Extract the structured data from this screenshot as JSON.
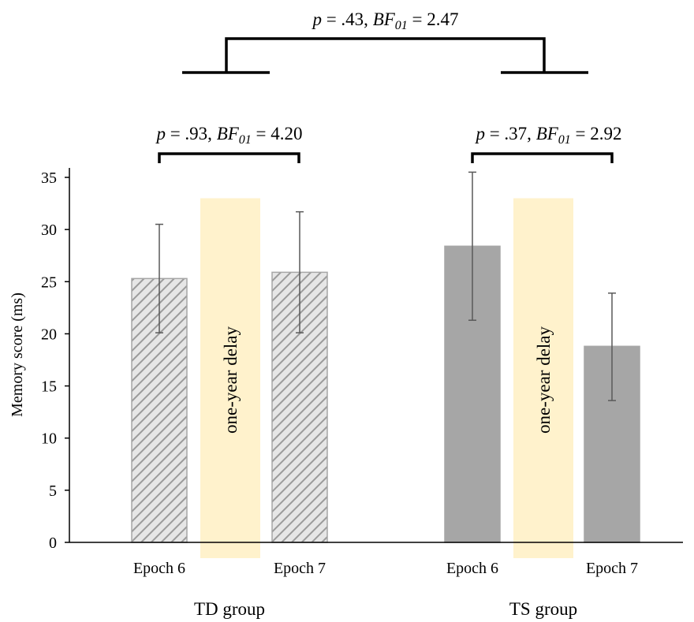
{
  "chart_data": {
    "type": "bar",
    "ylabel": "Memory score (ms)",
    "ylim": [
      0,
      35
    ],
    "yticks": [
      0,
      5,
      10,
      15,
      20,
      25,
      30,
      35
    ],
    "grid": false,
    "groups": [
      {
        "name": "TD group",
        "pattern": "hatched",
        "fill_color": "#d9d9d9",
        "stroke_color": "#a6a6a6",
        "bars": [
          {
            "label": "Epoch 6",
            "value": 25.3,
            "err_low": 20.1,
            "err_high": 30.5
          },
          {
            "label": "Epoch 7",
            "value": 25.9,
            "err_low": 20.1,
            "err_high": 31.7
          }
        ],
        "delay_label": "one-year delay",
        "comparison": {
          "p": "p",
          "p_val": " = .93, ",
          "bf": "BF",
          "bf_sub": "01",
          "bf_val": " = 4.20"
        }
      },
      {
        "name": "TS group",
        "pattern": "solid",
        "fill_color": "#a6a6a6",
        "stroke_color": "#a6a6a6",
        "bars": [
          {
            "label": "Epoch 6",
            "value": 28.4,
            "err_low": 21.3,
            "err_high": 35.5
          },
          {
            "label": "Epoch 7",
            "value": 18.8,
            "err_low": 13.6,
            "err_high": 23.9
          }
        ],
        "delay_label": "one-year delay",
        "comparison": {
          "p": "p",
          "p_val": " = .37, ",
          "bf": "BF",
          "bf_sub": "01",
          "bf_val": " = 2.92"
        }
      }
    ],
    "between_groups": {
      "p": "p",
      "p_val": " = .43, ",
      "bf": "BF",
      "bf_sub": "01",
      "bf_val": " = 2.47"
    },
    "delay_color": "#fff2cc",
    "delay_top_value": 33.0
  }
}
